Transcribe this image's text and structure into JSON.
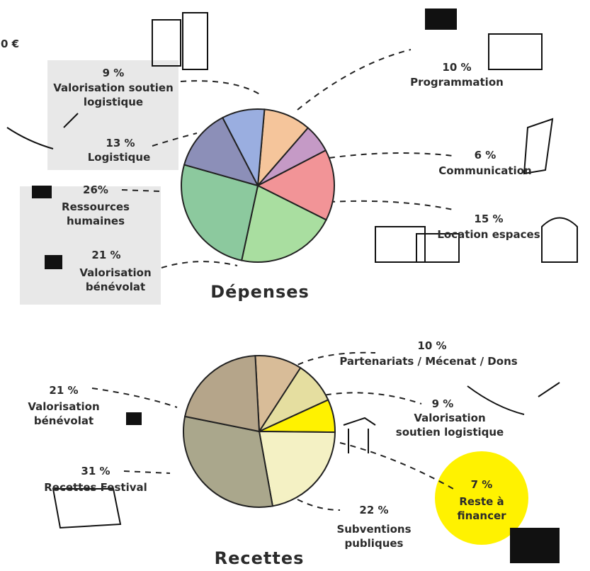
{
  "corner_text": "0 €",
  "chart_data": [
    {
      "type": "pie",
      "title": "Dépenses",
      "categories": [
        "Programmation",
        "Communication",
        "Location espaces",
        "Valorisation bénévolat",
        "Ressources humaines",
        "Logistique",
        "Valorisation soutien logistique"
      ],
      "values": [
        10,
        6,
        15,
        21,
        26,
        13,
        9
      ],
      "value_labels": [
        "10 %",
        "6 %",
        "15 %",
        "21 %",
        "26%",
        "13 %",
        "9 %"
      ],
      "colors": [
        "#f5c59b",
        "#c59ac6",
        "#f29497",
        "#a9dea0",
        "#8cc99e",
        "#8c8fb8",
        "#9aaee0"
      ]
    },
    {
      "type": "pie",
      "title": "Recettes",
      "categories": [
        "Partenariats / Mécenat / Dons",
        "Valorisation soutien logistique",
        "Reste à financer",
        "Subventions publiques",
        "Recettes Festival",
        "Valorisation bénévolat"
      ],
      "values": [
        10,
        9,
        7,
        22,
        31,
        21
      ],
      "value_labels": [
        "10 %",
        "9 %",
        "7 %",
        "22 %",
        "31 %",
        "21 %"
      ],
      "colors": [
        "#d8bc98",
        "#e5dea0",
        "#fff200",
        "#f4f1c4",
        "#aaa78c",
        "#b5a58a"
      ]
    }
  ]
}
